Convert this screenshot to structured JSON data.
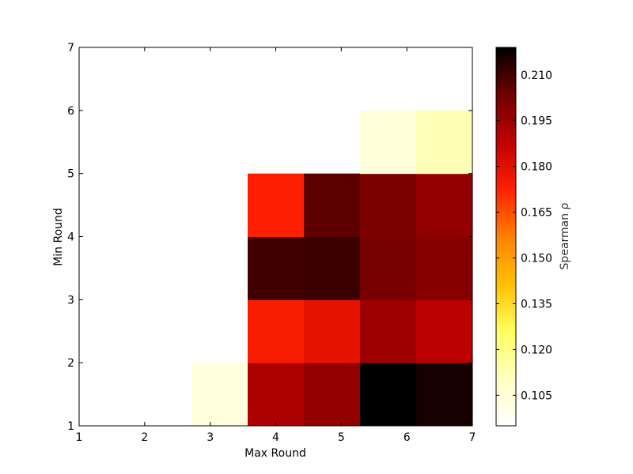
{
  "chart_data": {
    "type": "heatmap",
    "title": "",
    "xlabel": "Max Round",
    "ylabel": "Min Round",
    "xlim": [
      1,
      7
    ],
    "ylim": [
      1,
      7
    ],
    "x_ticks": [
      "1",
      "2",
      "3",
      "4",
      "5",
      "6",
      "7"
    ],
    "y_ticks": [
      "1",
      "2",
      "3",
      "4",
      "5",
      "6",
      "7"
    ],
    "colorbar": {
      "label": "Spearman ρ",
      "range": [
        0.095,
        0.219
      ],
      "ticks": [
        "0.105",
        "0.120",
        "0.135",
        "0.150",
        "0.165",
        "0.180",
        "0.195",
        "0.210"
      ],
      "colormap": "hot (reversed)"
    },
    "cells": [
      {
        "x": 3,
        "y": 1,
        "value": 0.103
      },
      {
        "x": 4,
        "y": 1,
        "value": 0.192
      },
      {
        "x": 5,
        "y": 1,
        "value": 0.197
      },
      {
        "x": 6,
        "y": 1,
        "value": 0.219
      },
      {
        "x": 7,
        "y": 1,
        "value": 0.216
      },
      {
        "x": 4,
        "y": 2,
        "value": 0.174
      },
      {
        "x": 5,
        "y": 2,
        "value": 0.179
      },
      {
        "x": 6,
        "y": 2,
        "value": 0.195
      },
      {
        "x": 7,
        "y": 2,
        "value": 0.189
      },
      {
        "x": 4,
        "y": 3,
        "value": 0.21
      },
      {
        "x": 5,
        "y": 3,
        "value": 0.211
      },
      {
        "x": 6,
        "y": 3,
        "value": 0.202
      },
      {
        "x": 7,
        "y": 3,
        "value": 0.199
      },
      {
        "x": 4,
        "y": 4,
        "value": 0.173
      },
      {
        "x": 5,
        "y": 4,
        "value": 0.206
      },
      {
        "x": 6,
        "y": 4,
        "value": 0.201
      },
      {
        "x": 7,
        "y": 4,
        "value": 0.197
      },
      {
        "x": 6,
        "y": 5,
        "value": 0.104
      },
      {
        "x": 7,
        "y": 5,
        "value": 0.112
      }
    ]
  }
}
